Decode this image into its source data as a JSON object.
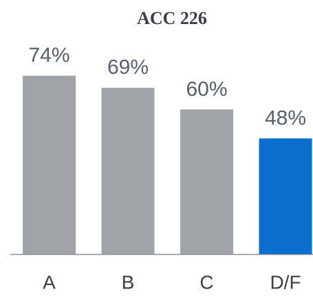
{
  "chart_data": {
    "type": "bar",
    "title": "ACC 226",
    "categories": [
      "A",
      "B",
      "C",
      "D/F"
    ],
    "values": [
      74,
      69,
      60,
      48
    ],
    "value_labels": [
      "74%",
      "69%",
      "60%",
      "48%"
    ],
    "colors": [
      "#a0a3a8",
      "#a0a3a8",
      "#a0a3a8",
      "#0a6fcf"
    ]
  }
}
